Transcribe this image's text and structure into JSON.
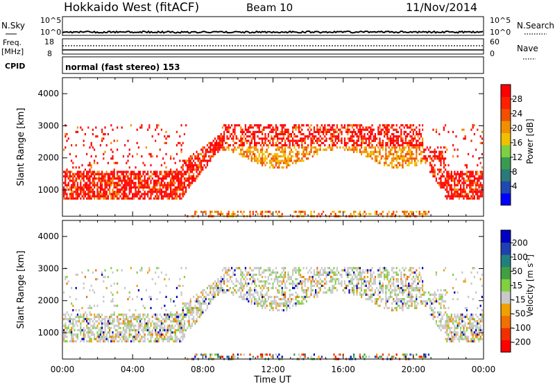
{
  "header": {
    "title": "Hokkaido West (fitACF)",
    "beam": "Beam 10",
    "date": "11/Nov/2014"
  },
  "status": {
    "nsky_label": "N.Sky",
    "nsky_ticks": [
      "10^5",
      "10^0"
    ],
    "nsearch_label": "N.Search",
    "freq_label_1": "Freq.",
    "freq_label_2": "[MHz]",
    "freq_ticks": [
      "18",
      "8"
    ],
    "nave_label": "Nave",
    "nave_ticks": [
      "60",
      "0"
    ],
    "cpid_label": "CPID",
    "cpid_value": "normal (fast stereo) 153"
  },
  "chart_data": [
    {
      "type": "heatmap",
      "name": "Power",
      "ylabel": "Slant Range [km]",
      "xlabel": "",
      "x_ticks": [
        "00:00",
        "04:00",
        "08:00",
        "12:00",
        "16:00",
        "20:00",
        "00:00"
      ],
      "y_ticks": [
        1000,
        2000,
        3000,
        4000
      ],
      "ylim": [
        180,
        4500
      ],
      "xlim_hours": [
        0,
        24
      ],
      "colorbar": {
        "label": "Power [dB]",
        "ticks": [
          "28",
          "24",
          "20",
          "16",
          "12",
          "8",
          "4"
        ],
        "colors": [
          "#0000ff",
          "#2048b0",
          "#2a7a78",
          "#3a9a50",
          "#7ed040",
          "#f0c000",
          "#f09000",
          "#f05000",
          "#ff2000",
          "#ff0000"
        ]
      }
    },
    {
      "type": "heatmap",
      "name": "Velocity",
      "ylabel": "Slant Range [km]",
      "xlabel": "Time UT",
      "x_ticks": [
        "00:00",
        "04:00",
        "08:00",
        "12:00",
        "16:00",
        "20:00",
        "00:00"
      ],
      "y_ticks": [
        1000,
        2000,
        3000,
        4000
      ],
      "ylim": [
        180,
        4500
      ],
      "xlim_hours": [
        0,
        24
      ],
      "colorbar": {
        "label": "Velocity [m s^-1]",
        "label_main": "Velocity [m s",
        "label_sup": "-1",
        "label_end": "]",
        "ticks": [
          "200",
          "100",
          "50",
          "15",
          "-15",
          "-50",
          "-100",
          "-200"
        ],
        "colors": [
          "#ff0000",
          "#f03000",
          "#f07000",
          "#f0a000",
          "#c8c8c8",
          "#80d040",
          "#40a040",
          "#208080",
          "#2040b0",
          "#0000c0"
        ]
      }
    }
  ]
}
